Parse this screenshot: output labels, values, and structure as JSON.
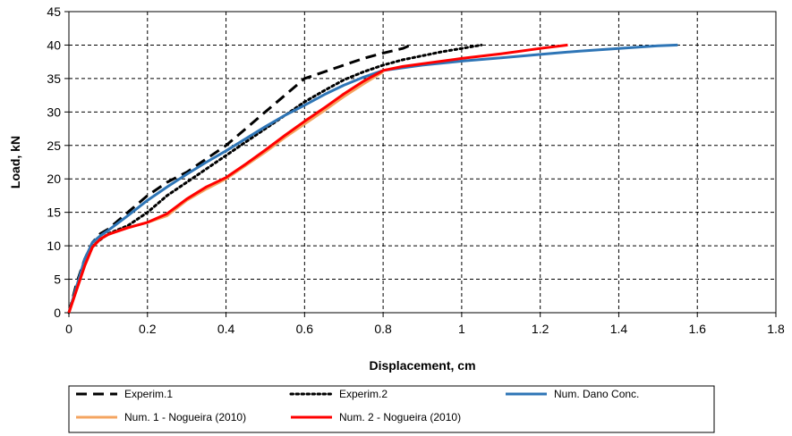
{
  "chart_data": {
    "type": "line",
    "title": "",
    "xlabel": "Displacement, cm",
    "ylabel": "Load, kN",
    "xlim": [
      0,
      1.8
    ],
    "ylim": [
      0,
      45
    ],
    "x_ticks": [
      0,
      0.2,
      0.4,
      0.6,
      0.8,
      1,
      1.2,
      1.4,
      1.6,
      1.8
    ],
    "x_tick_labels": [
      "0",
      "0.2",
      "0.4",
      "0.6",
      "0.8",
      "1",
      "1.2",
      "1.4",
      "1.6",
      "1.8"
    ],
    "y_ticks": [
      0,
      5,
      10,
      15,
      20,
      25,
      30,
      35,
      40,
      45
    ],
    "y_tick_labels": [
      "0",
      "5",
      "10",
      "15",
      "20",
      "25",
      "30",
      "35",
      "40",
      "45"
    ],
    "grid": "dashed",
    "legend_position": "bottom",
    "series": [
      {
        "name": "Experim.1",
        "color": "#000000",
        "style": "dashed",
        "x": [
          0,
          0.02,
          0.04,
          0.06,
          0.08,
          0.1,
          0.15,
          0.2,
          0.25,
          0.3,
          0.35,
          0.4,
          0.45,
          0.5,
          0.55,
          0.6,
          0.65,
          0.7,
          0.75,
          0.8,
          0.85,
          0.87
        ],
        "y": [
          0,
          4.5,
          8,
          10.5,
          11.8,
          12.5,
          15,
          17.5,
          19.5,
          21,
          23,
          25,
          27.5,
          30,
          32.5,
          35,
          36,
          37,
          38,
          38.8,
          39.5,
          40
        ]
      },
      {
        "name": "Experim.2",
        "color": "#000000",
        "style": "dotted",
        "x": [
          0,
          0.02,
          0.04,
          0.06,
          0.1,
          0.15,
          0.2,
          0.25,
          0.3,
          0.35,
          0.4,
          0.45,
          0.5,
          0.55,
          0.6,
          0.65,
          0.7,
          0.75,
          0.8,
          0.85,
          0.9,
          0.95,
          1.0,
          1.05
        ],
        "y": [
          0,
          4,
          7.5,
          10,
          11.8,
          13,
          15,
          17.5,
          19.5,
          21.5,
          23.5,
          25.5,
          27.5,
          29.5,
          31.5,
          33.2,
          34.8,
          36,
          37,
          37.8,
          38.4,
          39,
          39.5,
          40
        ]
      },
      {
        "name": "Num. Dano Conc.",
        "color": "#2e75b6",
        "style": "solid",
        "x": [
          0,
          0.02,
          0.04,
          0.06,
          0.08,
          0.1,
          0.15,
          0.2,
          0.25,
          0.3,
          0.35,
          0.4,
          0.45,
          0.5,
          0.55,
          0.6,
          0.65,
          0.7,
          0.75,
          0.8,
          0.9,
          1.0,
          1.1,
          1.2,
          1.3,
          1.4,
          1.5,
          1.55
        ],
        "y": [
          0,
          4,
          8,
          10.5,
          11.5,
          12.3,
          14.5,
          16.8,
          18.8,
          20.7,
          22.5,
          24.2,
          26,
          27.8,
          29.5,
          31,
          32.6,
          34,
          35.2,
          36.2,
          37,
          37.6,
          38.1,
          38.6,
          39.1,
          39.5,
          39.9,
          40
        ]
      },
      {
        "name": "Num. 1 - Nogueira (2010)",
        "color": "#f4a460",
        "style": "solid",
        "x": [
          0,
          0.02,
          0.04,
          0.06,
          0.08,
          0.1,
          0.15,
          0.2,
          0.25,
          0.3,
          0.35,
          0.4,
          0.45,
          0.5,
          0.55,
          0.6,
          0.65,
          0.7,
          0.75,
          0.8
        ],
        "y": [
          0,
          3.5,
          7,
          9.8,
          11,
          11.7,
          12.7,
          13.5,
          14.5,
          16.8,
          18.5,
          20,
          22,
          24,
          26.2,
          28.2,
          30.2,
          32.3,
          34.2,
          36
        ]
      },
      {
        "name": "Num. 2 - Nogueira (2010)",
        "color": "#ff0000",
        "style": "solid",
        "x": [
          0,
          0.02,
          0.04,
          0.06,
          0.08,
          0.1,
          0.15,
          0.2,
          0.25,
          0.3,
          0.35,
          0.4,
          0.45,
          0.5,
          0.55,
          0.6,
          0.65,
          0.7,
          0.75,
          0.8,
          0.85,
          0.9,
          1.0,
          1.1,
          1.2,
          1.27
        ],
        "y": [
          0,
          3.5,
          7,
          9.8,
          11,
          11.7,
          12.7,
          13.5,
          14.8,
          17,
          18.8,
          20.2,
          22.2,
          24.3,
          26.5,
          28.6,
          30.6,
          32.7,
          34.6,
          36.2,
          36.8,
          37.2,
          38,
          38.7,
          39.5,
          40
        ]
      }
    ]
  }
}
